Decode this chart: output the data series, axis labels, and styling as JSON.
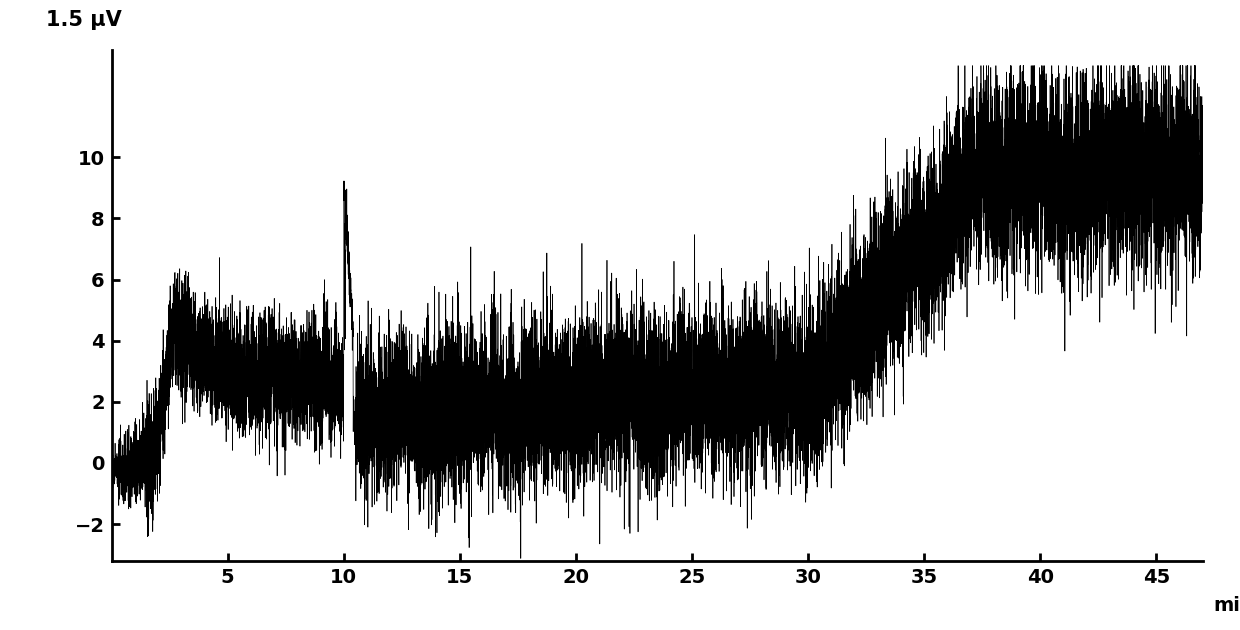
{
  "ylabel": "1.5 μV",
  "xlabel": "min",
  "xlim": [
    0,
    47
  ],
  "ylim": [
    -3.2,
    13.5
  ],
  "yticks": [
    -2,
    0,
    2,
    4,
    6,
    8,
    10
  ],
  "xticks": [
    5,
    10,
    15,
    20,
    25,
    30,
    35,
    40,
    45
  ],
  "line_color": "#000000",
  "background_color": "#ffffff",
  "linewidth": 0.5,
  "figsize": [
    12.4,
    6.3
  ],
  "dpi": 100,
  "seed": 77,
  "n_points": 20000
}
